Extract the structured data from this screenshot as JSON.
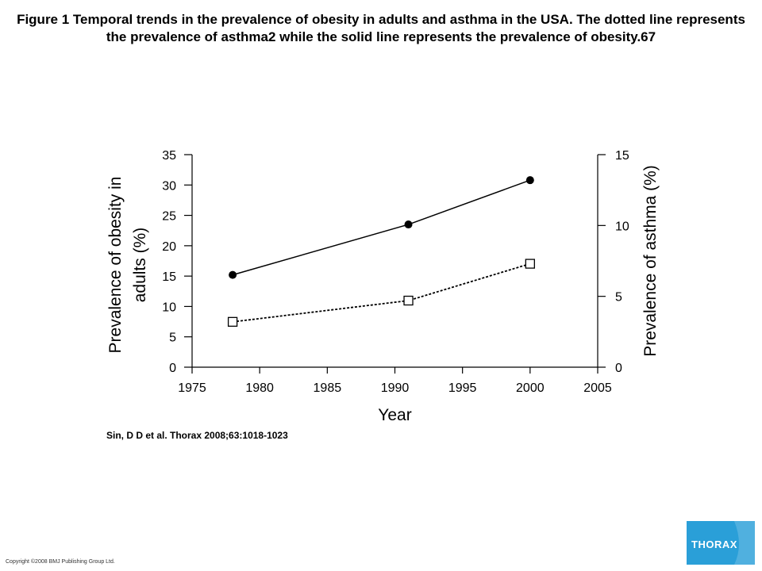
{
  "slide": {
    "title": "Figure 1 Temporal trends in the prevalence of obesity in adults and asthma in the USA. The dotted line represents the prevalence of asthma2 while the solid line represents the prevalence of obesity.67",
    "citation": "Sin, D D et al. Thorax 2008;63:1018-1023",
    "copyright": "Copyright ©2008 BMJ Publishing Group Ltd.",
    "logo_text": "THORAX",
    "logo_color": "#2a9fd8"
  },
  "chart_data": {
    "type": "line",
    "title": "",
    "xlabel": "Year",
    "ylabel": "Prevalence of obesity in adults (%)",
    "y2label": "Prevalence of asthma (%)",
    "xlim": [
      1975,
      2005
    ],
    "ylim": [
      0,
      35
    ],
    "y2lim": [
      0,
      15
    ],
    "x_ticks": [
      "1975",
      "1980",
      "1985",
      "1990",
      "1995",
      "2000",
      "2005"
    ],
    "y_ticks": [
      "0",
      "5",
      "10",
      "15",
      "20",
      "25",
      "30",
      "35"
    ],
    "y2_ticks": [
      "0",
      "5",
      "10",
      "15"
    ],
    "grid": false,
    "series": [
      {
        "axis": "left",
        "style": "solid",
        "marker": "filled-circle",
        "color": "#000000",
        "x": [
          1978,
          1991,
          2000
        ],
        "values": [
          15.2,
          23.5,
          30.8
        ]
      },
      {
        "axis": "right",
        "style": "dotted",
        "marker": "open-square",
        "color": "#000000",
        "x": [
          1978,
          1991,
          2000
        ],
        "values": [
          3.2,
          4.7,
          7.3
        ]
      }
    ]
  }
}
